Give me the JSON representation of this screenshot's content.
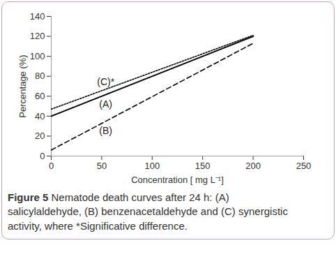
{
  "chart_data": {
    "type": "line",
    "caption_label": "Figure 5",
    "caption": "Nematode death curves after 24 h: (A) salicylaldehyde, (B) benzenacetaldehyde and (C) synergistic activity, where *Significative difference.",
    "x_label": "Concentration [ mg L⁻¹]",
    "y_label": "Percentage (%)",
    "x": [
      0,
      200
    ],
    "series": [
      {
        "name": "(A)",
        "color": "#000000",
        "line_style": "solid",
        "values": [
          40,
          120
        ]
      },
      {
        "name": "(B)",
        "color": "#000000",
        "line_style": "dashed",
        "values": [
          6,
          113
        ]
      },
      {
        "name": "(C)*",
        "color": "#000000",
        "line_style": "dotted",
        "values": [
          47,
          121
        ]
      }
    ],
    "xlim": [
      0,
      250
    ],
    "xticks": [
      0,
      50,
      100,
      150,
      200,
      250
    ],
    "ylim": [
      0,
      140
    ],
    "yticks": [
      0,
      20,
      40,
      60,
      80,
      100,
      120,
      140
    ],
    "grid": false
  }
}
